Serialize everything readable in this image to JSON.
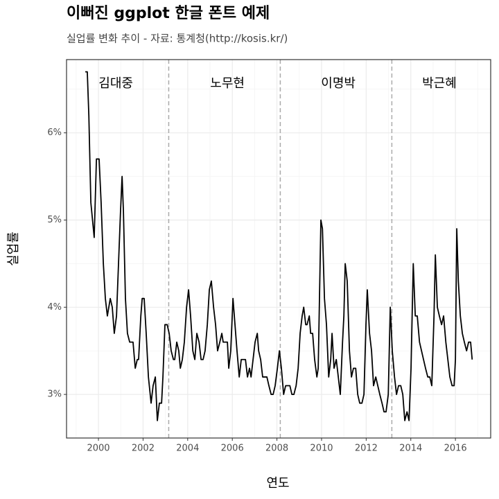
{
  "chart_data": {
    "type": "line",
    "title": "이뻐진 ggplot 한글 폰트 예제",
    "subtitle": "실업률 변화 추이 - 자료: 통계청(http://kosis.kr/)",
    "x_label": "연도",
    "y_label": "실업률",
    "xlim": [
      1998.57,
      2017.58
    ],
    "xticks": [
      2000,
      2002,
      2004,
      2006,
      2008,
      2010,
      2012,
      2014,
      2016
    ],
    "xminorticks": [
      1999,
      2001,
      2003,
      2005,
      2007,
      2009,
      2011,
      2013,
      2015,
      2017
    ],
    "ylim": [
      2.5,
      6.84
    ],
    "yticks": [
      {
        "value": 3,
        "label": "3%"
      },
      {
        "value": 4,
        "label": "4%"
      },
      {
        "value": 5,
        "label": "5%"
      },
      {
        "value": 6,
        "label": "6%"
      }
    ],
    "yminorticks": [
      3.5,
      4.5,
      5.5,
      6.5
    ],
    "grid": true,
    "vlines": [
      2003.15,
      2008.15,
      2013.15
    ],
    "vline_color": "#aaaaaa",
    "annotations": [
      {
        "text": "김대중",
        "x": 2000.78,
        "y": 6.56
      },
      {
        "text": "노무현",
        "x": 2005.78,
        "y": 6.56
      },
      {
        "text": "이명박",
        "x": 2010.75,
        "y": 6.56
      },
      {
        "text": "박근혜",
        "x": 2015.28,
        "y": 6.56
      }
    ],
    "series": [
      {
        "color": "#000000",
        "x": [
          1999.41,
          1999.5,
          1999.57,
          1999.66,
          1999.81,
          1999.91,
          2000.03,
          2000.12,
          2000.22,
          2000.31,
          2000.4,
          2000.53,
          2000.62,
          2000.71,
          2000.81,
          2000.9,
          2000.99,
          2001.06,
          2001.12,
          2001.21,
          2001.3,
          2001.4,
          2001.49,
          2001.55,
          2001.65,
          2001.74,
          2001.8,
          2001.9,
          2001.96,
          2002.05,
          2002.14,
          2002.24,
          2002.36,
          2002.45,
          2002.55,
          2002.64,
          2002.73,
          2002.83,
          2002.89,
          2002.98,
          2003.08,
          2003.17,
          2003.26,
          2003.36,
          2003.42,
          2003.51,
          2003.6,
          2003.67,
          2003.76,
          2003.85,
          2003.95,
          2004.04,
          2004.13,
          2004.23,
          2004.32,
          2004.41,
          2004.51,
          2004.6,
          2004.69,
          2004.78,
          2004.88,
          2004.97,
          2005.06,
          2005.16,
          2005.25,
          2005.34,
          2005.44,
          2005.53,
          2005.59,
          2005.69,
          2005.78,
          2005.84,
          2005.93,
          2006.03,
          2006.12,
          2006.21,
          2006.31,
          2006.4,
          2006.49,
          2006.59,
          2006.68,
          2006.77,
          2006.84,
          2006.93,
          2007.02,
          2007.12,
          2007.18,
          2007.27,
          2007.36,
          2007.46,
          2007.55,
          2007.64,
          2007.74,
          2007.83,
          2007.92,
          2008.02,
          2008.11,
          2008.2,
          2008.3,
          2008.39,
          2008.48,
          2008.58,
          2008.67,
          2008.76,
          2008.86,
          2008.95,
          2009.04,
          2009.13,
          2009.2,
          2009.29,
          2009.35,
          2009.45,
          2009.51,
          2009.6,
          2009.69,
          2009.79,
          2009.85,
          2009.97,
          2010.04,
          2010.13,
          2010.22,
          2010.32,
          2010.41,
          2010.47,
          2010.56,
          2010.66,
          2010.75,
          2010.84,
          2010.94,
          2011.0,
          2011.06,
          2011.15,
          2011.25,
          2011.34,
          2011.43,
          2011.53,
          2011.62,
          2011.71,
          2011.81,
          2011.9,
          2011.99,
          2012.05,
          2012.15,
          2012.24,
          2012.33,
          2012.43,
          2012.52,
          2012.61,
          2012.71,
          2012.8,
          2012.89,
          2012.99,
          2013.08,
          2013.17,
          2013.27,
          2013.36,
          2013.45,
          2013.55,
          2013.64,
          2013.73,
          2013.83,
          2013.92,
          2014.01,
          2014.11,
          2014.2,
          2014.29,
          2014.39,
          2014.48,
          2014.57,
          2014.66,
          2014.76,
          2014.85,
          2014.94,
          2015.04,
          2015.1,
          2015.19,
          2015.28,
          2015.38,
          2015.47,
          2015.57,
          2015.66,
          2015.75,
          2015.85,
          2015.94,
          2016.0,
          2016.06,
          2016.13,
          2016.22,
          2016.31,
          2016.4,
          2016.5,
          2016.59,
          2016.68,
          2016.75
        ],
        "values": [
          6.7,
          6.7,
          6.2,
          5.2,
          4.8,
          5.7,
          5.7,
          5.2,
          4.5,
          4.1,
          3.9,
          4.1,
          4.0,
          3.7,
          3.9,
          4.5,
          5.1,
          5.5,
          5.1,
          4.1,
          3.7,
          3.6,
          3.6,
          3.6,
          3.3,
          3.4,
          3.4,
          3.9,
          4.1,
          4.1,
          3.7,
          3.2,
          2.9,
          3.1,
          3.2,
          2.7,
          2.9,
          2.9,
          3.2,
          3.8,
          3.8,
          3.7,
          3.5,
          3.4,
          3.4,
          3.6,
          3.5,
          3.3,
          3.4,
          3.6,
          4.0,
          4.2,
          3.9,
          3.5,
          3.4,
          3.7,
          3.6,
          3.4,
          3.4,
          3.5,
          3.8,
          4.2,
          4.3,
          4.0,
          3.8,
          3.5,
          3.6,
          3.7,
          3.6,
          3.6,
          3.6,
          3.3,
          3.5,
          4.1,
          3.8,
          3.5,
          3.2,
          3.4,
          3.4,
          3.4,
          3.2,
          3.3,
          3.2,
          3.4,
          3.6,
          3.7,
          3.5,
          3.4,
          3.2,
          3.2,
          3.2,
          3.1,
          3.0,
          3.0,
          3.1,
          3.3,
          3.5,
          3.3,
          3.0,
          3.1,
          3.1,
          3.1,
          3.0,
          3.0,
          3.1,
          3.3,
          3.7,
          3.9,
          4.0,
          3.8,
          3.8,
          3.9,
          3.7,
          3.7,
          3.4,
          3.2,
          3.3,
          5.0,
          4.9,
          4.1,
          3.8,
          3.2,
          3.4,
          3.7,
          3.3,
          3.4,
          3.2,
          3.0,
          3.6,
          3.9,
          4.5,
          4.3,
          3.5,
          3.2,
          3.3,
          3.3,
          3.0,
          2.9,
          2.9,
          3.0,
          3.8,
          4.2,
          3.7,
          3.5,
          3.1,
          3.2,
          3.1,
          3.0,
          2.9,
          2.8,
          2.8,
          3.0,
          4.0,
          3.5,
          3.2,
          3.0,
          3.1,
          3.1,
          3.0,
          2.7,
          2.8,
          2.7,
          3.3,
          4.5,
          3.9,
          3.9,
          3.6,
          3.5,
          3.4,
          3.3,
          3.2,
          3.2,
          3.1,
          3.9,
          4.6,
          4.0,
          3.9,
          3.8,
          3.9,
          3.6,
          3.4,
          3.2,
          3.1,
          3.1,
          3.4,
          4.9,
          4.3,
          3.9,
          3.7,
          3.6,
          3.5,
          3.6,
          3.6,
          3.4
        ]
      }
    ]
  }
}
